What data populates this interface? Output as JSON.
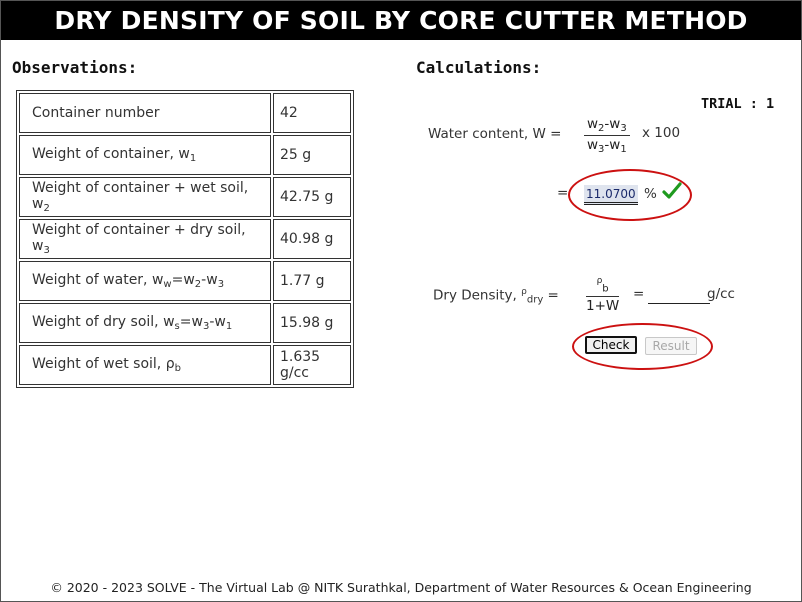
{
  "title": "DRY DENSITY OF SOIL BY CORE CUTTER METHOD",
  "observations": {
    "heading": "Observations:",
    "rows": [
      {
        "label": "Container number",
        "sub": "",
        "value": "42"
      },
      {
        "label": "Weight of container, w",
        "sub": "1",
        "value": "25 g"
      },
      {
        "label": "Weight of container + wet soil, w",
        "sub": "2",
        "value": "42.75 g"
      },
      {
        "label": "Weight of container + dry soil, w",
        "sub": "3",
        "value": "40.98 g"
      },
      {
        "label": "Weight of water, w",
        "sub": "w",
        "suffix": "=w",
        "sub2": "2",
        "suffix2": "-w",
        "sub3": "3",
        "value": "1.77 g"
      },
      {
        "label": "Weight of dry soil, w",
        "sub": "s",
        "suffix": "=w",
        "sub2": "3",
        "suffix2": "-w",
        "sub3": "1",
        "value": "15.98 g"
      },
      {
        "label": "Weight of wet soil, ρ",
        "sub": "b",
        "value": "1.635 g/cc"
      }
    ]
  },
  "calculations": {
    "heading": "Calculations:",
    "trial": "TRIAL : 1",
    "water_content": {
      "label": "Water content, W =",
      "num": "w2-w3",
      "den": "w3-w1",
      "times": "x 100",
      "eq": "=",
      "value": "11.0700",
      "unit": "%",
      "status": "correct"
    },
    "dry_density": {
      "label": "Dry Density, ρdry =",
      "num": "ρb",
      "den": "1+W",
      "eq": "=",
      "value": "",
      "unit": "g/cc"
    },
    "buttons": {
      "check": "Check",
      "result": "Result"
    }
  },
  "footer": "© 2020 - 2023 SOLVE - The Virtual Lab @ NITK Surathkal, Department of Water Resources & Ocean Engineering",
  "colors": {
    "title_bg": "#000000",
    "highlight_ring": "#cc1111",
    "check_mark": "#1f9a1f",
    "input_bg": "#dfe4ee"
  }
}
